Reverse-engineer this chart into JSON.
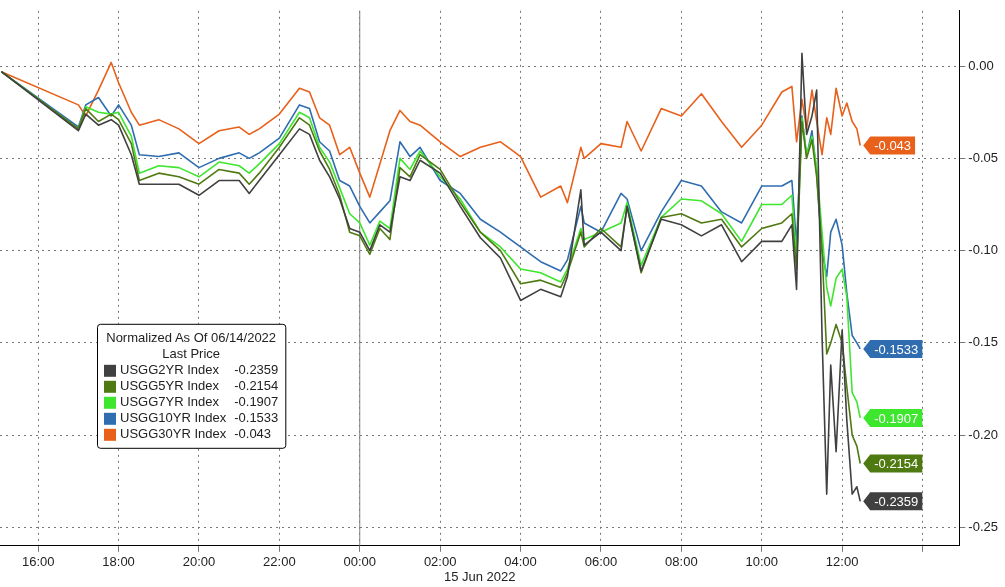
{
  "chart_data": {
    "type": "line",
    "xlabel": "15 Jun 2022",
    "legend_title": "Normalized As Of 06/14/2022\nLast Price",
    "legend": "bottom left",
    "grid": true,
    "marker": "none",
    "line_style": "solid",
    "xlim": [
      "2022-06-14T15:03",
      "2022-06-15T14:55"
    ],
    "xticks": [
      {
        "value": "2022-06-14T16:00",
        "label": "16:00"
      },
      {
        "value": "2022-06-14T18:00",
        "label": "18:00"
      },
      {
        "value": "2022-06-14T20:00",
        "label": "20:00"
      },
      {
        "value": "2022-06-14T22:00",
        "label": "22:00"
      },
      {
        "value": "2022-06-15T00:00",
        "label": "00:00"
      },
      {
        "value": "2022-06-15T02:00",
        "label": "02:00"
      },
      {
        "value": "2022-06-15T04:00",
        "label": "04:00"
      },
      {
        "value": "2022-06-15T06:00",
        "label": "06:00"
      },
      {
        "value": "2022-06-15T08:00",
        "label": "08:00"
      },
      {
        "value": "2022-06-15T10:00",
        "label": "10:00"
      },
      {
        "value": "2022-06-15T12:00",
        "label": "12:00"
      },
      {
        "value": "2022-06-15T14:00",
        "label": null
      }
    ],
    "ylim": [
      -0.26,
      0.03
    ],
    "yticks": [
      {
        "value": 0,
        "label": "0.00"
      },
      {
        "value": -0.05,
        "label": "-0.05"
      },
      {
        "value": -0.1,
        "label": "-0.10"
      },
      {
        "value": -0.15,
        "label": "-0.15"
      },
      {
        "value": -0.2,
        "label": "-0.20"
      },
      {
        "value": -0.25,
        "label": "-0.25"
      }
    ],
    "ref_lines": [
      {
        "axis": "x",
        "value": "2022-06-15T00:00",
        "color": "#808080"
      }
    ],
    "x": [
      "2022-06-14T15:05",
      "2022-06-14T17:00",
      "2022-06-14T17:11",
      "2022-06-14T17:30",
      "2022-06-14T17:49",
      "2022-06-14T18:00",
      "2022-06-14T18:19",
      "2022-06-14T18:31",
      "2022-06-14T19:00",
      "2022-06-14T19:30",
      "2022-06-14T20:00",
      "2022-06-14T20:30",
      "2022-06-14T21:00",
      "2022-06-14T21:15",
      "2022-06-14T21:30",
      "2022-06-14T22:00",
      "2022-06-14T22:30",
      "2022-06-14T22:45",
      "2022-06-14T23:00",
      "2022-06-14T23:15",
      "2022-06-14T23:30",
      "2022-06-14T23:45",
      "2022-06-15T00:00",
      "2022-06-15T00:15",
      "2022-06-15T00:30",
      "2022-06-15T00:45",
      "2022-06-15T01:00",
      "2022-06-15T01:15",
      "2022-06-15T01:30",
      "2022-06-15T02:00",
      "2022-06-15T02:30",
      "2022-06-15T03:00",
      "2022-06-15T03:30",
      "2022-06-15T04:00",
      "2022-06-15T04:30",
      "2022-06-15T05:00",
      "2022-06-15T05:10",
      "2022-06-15T05:30",
      "2022-06-15T05:35",
      "2022-06-15T06:00",
      "2022-06-15T06:30",
      "2022-06-15T06:39",
      "2022-06-15T07:00",
      "2022-06-15T07:30",
      "2022-06-15T08:00",
      "2022-06-15T08:30",
      "2022-06-15T09:00",
      "2022-06-15T09:30",
      "2022-06-15T10:00",
      "2022-06-15T10:30",
      "2022-06-15T10:45",
      "2022-06-15T10:52",
      "2022-06-15T11:00",
      "2022-06-15T11:07",
      "2022-06-15T11:15",
      "2022-06-15T11:22",
      "2022-06-15T11:30",
      "2022-06-15T11:37",
      "2022-06-15T11:43",
      "2022-06-15T11:51",
      "2022-06-15T12:00",
      "2022-06-15T12:07",
      "2022-06-15T12:15",
      "2022-06-15T12:22",
      "2022-06-15T12:27"
    ],
    "series": [
      {
        "name": "USGG2YR Index",
        "color": "#404040",
        "values": [
          -0.003,
          -0.035,
          -0.026,
          -0.032,
          -0.029,
          -0.032,
          -0.048,
          -0.064,
          -0.064,
          -0.064,
          -0.07,
          -0.062,
          -0.062,
          -0.069,
          -0.062,
          -0.048,
          -0.034,
          -0.037,
          -0.051,
          -0.06,
          -0.072,
          -0.088,
          -0.09,
          -0.1,
          -0.086,
          -0.09,
          -0.06,
          -0.062,
          -0.051,
          -0.058,
          -0.076,
          -0.093,
          -0.104,
          -0.127,
          -0.121,
          -0.125,
          -0.114,
          -0.067,
          -0.097,
          -0.09,
          -0.1,
          -0.076,
          -0.111,
          -0.083,
          -0.086,
          -0.092,
          -0.086,
          -0.106,
          -0.095,
          -0.095,
          -0.086,
          -0.121,
          0.007,
          -0.037,
          -0.027,
          -0.013,
          -0.146,
          -0.232,
          -0.162,
          -0.209,
          -0.143,
          -0.192,
          -0.232,
          -0.228,
          -0.2359
        ],
        "value_labels": [
          null,
          null,
          null,
          null,
          null,
          null,
          null,
          null,
          null,
          null,
          null,
          null,
          null,
          null,
          null,
          null,
          null,
          null,
          null,
          null,
          null,
          null,
          null,
          null,
          null,
          null,
          null,
          null,
          null,
          null,
          null,
          null,
          null,
          null,
          null,
          null,
          null,
          null,
          null,
          null,
          null,
          null,
          null,
          null,
          null,
          null,
          null,
          null,
          null,
          null,
          null,
          null,
          null,
          null,
          null,
          null,
          null,
          null,
          null,
          null,
          null,
          null,
          null,
          null,
          "-0.2359"
        ]
      },
      {
        "name": "USGG5YR Index",
        "color": "#4f7a12",
        "values": [
          -0.003,
          -0.034,
          -0.023,
          -0.03,
          -0.026,
          -0.029,
          -0.042,
          -0.062,
          -0.058,
          -0.06,
          -0.064,
          -0.056,
          -0.058,
          -0.064,
          -0.058,
          -0.044,
          -0.028,
          -0.032,
          -0.046,
          -0.056,
          -0.07,
          -0.09,
          -0.092,
          -0.102,
          -0.088,
          -0.094,
          -0.055,
          -0.06,
          -0.048,
          -0.056,
          -0.074,
          -0.09,
          -0.1,
          -0.118,
          -0.116,
          -0.12,
          -0.112,
          -0.09,
          -0.098,
          -0.088,
          -0.098,
          -0.076,
          -0.112,
          -0.082,
          -0.08,
          -0.085,
          -0.083,
          -0.098,
          -0.088,
          -0.085,
          -0.08,
          -0.11,
          -0.03,
          -0.05,
          -0.04,
          -0.06,
          -0.1,
          -0.156,
          -0.15,
          -0.14,
          -0.15,
          -0.174,
          -0.2,
          -0.206,
          -0.2154
        ],
        "value_labels": [
          null,
          null,
          null,
          null,
          null,
          null,
          null,
          null,
          null,
          null,
          null,
          null,
          null,
          null,
          null,
          null,
          null,
          null,
          null,
          null,
          null,
          null,
          null,
          null,
          null,
          null,
          null,
          null,
          null,
          null,
          null,
          null,
          null,
          null,
          null,
          null,
          null,
          null,
          null,
          null,
          null,
          null,
          null,
          null,
          null,
          null,
          null,
          null,
          null,
          null,
          null,
          null,
          null,
          null,
          null,
          null,
          null,
          null,
          null,
          null,
          null,
          null,
          null,
          null,
          "-0.2154"
        ]
      },
      {
        "name": "USGG7YR Index",
        "color": "#3ee62e",
        "values": [
          -0.003,
          -0.034,
          -0.022,
          -0.025,
          -0.026,
          -0.025,
          -0.038,
          -0.058,
          -0.054,
          -0.055,
          -0.06,
          -0.052,
          -0.054,
          -0.058,
          -0.053,
          -0.042,
          -0.025,
          -0.028,
          -0.044,
          -0.052,
          -0.066,
          -0.08,
          -0.085,
          -0.097,
          -0.084,
          -0.088,
          -0.05,
          -0.056,
          -0.046,
          -0.06,
          -0.072,
          -0.09,
          -0.098,
          -0.11,
          -0.112,
          -0.117,
          -0.11,
          -0.088,
          -0.094,
          -0.09,
          -0.085,
          -0.074,
          -0.108,
          -0.082,
          -0.072,
          -0.073,
          -0.08,
          -0.095,
          -0.075,
          -0.075,
          -0.07,
          -0.105,
          -0.028,
          -0.048,
          -0.038,
          -0.055,
          -0.09,
          -0.12,
          -0.13,
          -0.115,
          -0.11,
          -0.125,
          -0.177,
          -0.182,
          -0.1907
        ],
        "value_labels": [
          null,
          null,
          null,
          null,
          null,
          null,
          null,
          null,
          null,
          null,
          null,
          null,
          null,
          null,
          null,
          null,
          null,
          null,
          null,
          null,
          null,
          null,
          null,
          null,
          null,
          null,
          null,
          null,
          null,
          null,
          null,
          null,
          null,
          null,
          null,
          null,
          null,
          null,
          null,
          null,
          null,
          null,
          null,
          null,
          null,
          null,
          null,
          null,
          null,
          null,
          null,
          null,
          null,
          null,
          null,
          null,
          null,
          null,
          null,
          null,
          null,
          null,
          null,
          null,
          "-0.1907"
        ]
      },
      {
        "name": "USGG10YR Index",
        "color": "#2f6db0",
        "values": [
          -0.003,
          -0.033,
          -0.021,
          -0.017,
          -0.027,
          -0.021,
          -0.032,
          -0.048,
          -0.049,
          -0.047,
          -0.055,
          -0.05,
          -0.047,
          -0.05,
          -0.047,
          -0.039,
          -0.021,
          -0.023,
          -0.041,
          -0.046,
          -0.062,
          -0.065,
          -0.076,
          -0.085,
          -0.079,
          -0.073,
          -0.041,
          -0.049,
          -0.044,
          -0.062,
          -0.069,
          -0.083,
          -0.09,
          -0.098,
          -0.106,
          -0.111,
          -0.105,
          -0.076,
          -0.085,
          -0.09,
          -0.069,
          -0.072,
          -0.1,
          -0.079,
          -0.062,
          -0.065,
          -0.079,
          -0.085,
          -0.065,
          -0.065,
          -0.062,
          -0.097,
          -0.027,
          -0.049,
          -0.035,
          -0.058,
          -0.1,
          -0.114,
          -0.09,
          -0.083,
          -0.097,
          -0.123,
          -0.146,
          -0.15,
          -0.1533
        ],
        "value_labels": [
          null,
          null,
          null,
          null,
          null,
          null,
          null,
          null,
          null,
          null,
          null,
          null,
          null,
          null,
          null,
          null,
          null,
          null,
          null,
          null,
          null,
          null,
          null,
          null,
          null,
          null,
          null,
          null,
          null,
          null,
          null,
          null,
          null,
          null,
          null,
          null,
          null,
          null,
          null,
          null,
          null,
          null,
          null,
          null,
          null,
          null,
          null,
          null,
          null,
          null,
          null,
          null,
          null,
          null,
          null,
          null,
          null,
          null,
          null,
          null,
          null,
          null,
          null,
          null,
          "-0.1533"
        ]
      },
      {
        "name": "USGG30YR Index",
        "color": "#e8601a",
        "values": [
          -0.003,
          -0.021,
          -0.027,
          -0.013,
          0.002,
          -0.009,
          -0.025,
          -0.032,
          -0.029,
          -0.034,
          -0.042,
          -0.035,
          -0.033,
          -0.037,
          -0.034,
          -0.026,
          -0.012,
          -0.014,
          -0.028,
          -0.032,
          -0.048,
          -0.044,
          -0.058,
          -0.071,
          -0.053,
          -0.035,
          -0.024,
          -0.03,
          -0.032,
          -0.041,
          -0.049,
          -0.044,
          -0.041,
          -0.049,
          -0.071,
          -0.065,
          -0.074,
          -0.044,
          -0.05,
          -0.042,
          -0.044,
          -0.03,
          -0.046,
          -0.023,
          -0.027,
          -0.015,
          -0.03,
          -0.044,
          -0.032,
          -0.014,
          -0.011,
          -0.041,
          -0.018,
          -0.034,
          -0.013,
          -0.03,
          -0.048,
          -0.028,
          -0.037,
          -0.012,
          -0.027,
          -0.02,
          -0.03,
          -0.034,
          -0.043
        ],
        "value_labels": [
          null,
          null,
          null,
          null,
          null,
          null,
          null,
          null,
          null,
          null,
          null,
          null,
          null,
          null,
          null,
          null,
          null,
          null,
          null,
          null,
          null,
          null,
          null,
          null,
          null,
          null,
          null,
          null,
          null,
          null,
          null,
          null,
          null,
          null,
          null,
          null,
          null,
          null,
          null,
          null,
          null,
          null,
          null,
          null,
          null,
          null,
          null,
          null,
          null,
          null,
          null,
          null,
          null,
          null,
          null,
          null,
          null,
          null,
          null,
          null,
          null,
          null,
          null,
          null,
          "-0.043"
        ]
      }
    ]
  }
}
